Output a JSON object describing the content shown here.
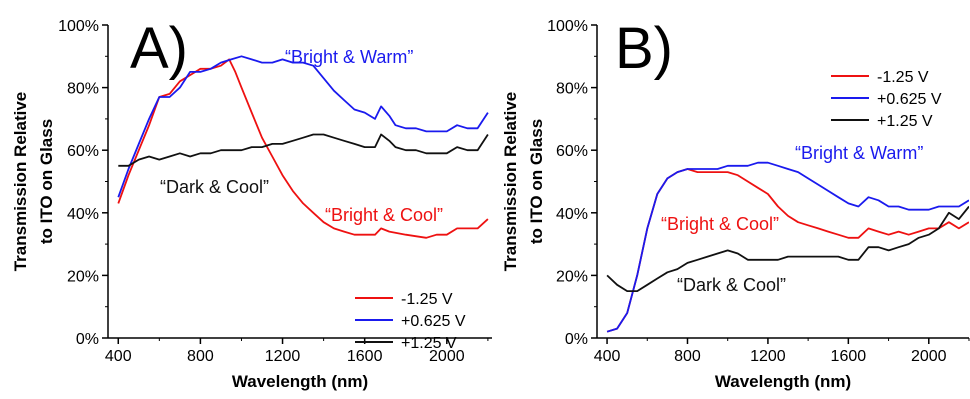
{
  "chart_data": [
    {
      "type": "line",
      "panel_label": "A)",
      "xlabel": "Wavelength (nm)",
      "ylabel": [
        "Transmission Relative",
        "to ITO on Glass"
      ],
      "xlim": [
        350,
        2220
      ],
      "ylim": [
        0,
        100
      ],
      "xticks": [
        400,
        800,
        1200,
        1600,
        2000
      ],
      "yticks": [
        0,
        20,
        40,
        60,
        80,
        100
      ],
      "ytick_labels": [
        "0%",
        "20%",
        "40%",
        "60%",
        "80%",
        "100%"
      ],
      "grid": false,
      "legend": "bottom-right",
      "series": [
        {
          "name": "-1.25 V",
          "color": "#ee1111",
          "points": [
            [
              400,
              43
            ],
            [
              450,
              52
            ],
            [
              500,
              60
            ],
            [
              550,
              68
            ],
            [
              600,
              77
            ],
            [
              650,
              78
            ],
            [
              700,
              82
            ],
            [
              750,
              84
            ],
            [
              800,
              86
            ],
            [
              850,
              86
            ],
            [
              900,
              87
            ],
            [
              940,
              89
            ],
            [
              970,
              85
            ],
            [
              1000,
              80
            ],
            [
              1050,
              72
            ],
            [
              1100,
              64
            ],
            [
              1150,
              58
            ],
            [
              1200,
              52
            ],
            [
              1250,
              47
            ],
            [
              1300,
              43
            ],
            [
              1350,
              40
            ],
            [
              1400,
              37
            ],
            [
              1450,
              35
            ],
            [
              1500,
              34
            ],
            [
              1550,
              33
            ],
            [
              1600,
              33
            ],
            [
              1650,
              33
            ],
            [
              1680,
              35
            ],
            [
              1720,
              34
            ],
            [
              1800,
              33
            ],
            [
              1900,
              32
            ],
            [
              1950,
              33
            ],
            [
              2000,
              33
            ],
            [
              2050,
              35
            ],
            [
              2100,
              35
            ],
            [
              2150,
              35
            ],
            [
              2200,
              38
            ]
          ]
        },
        {
          "name": "+0.625 V",
          "color": "#1a1aee",
          "points": [
            [
              400,
              45
            ],
            [
              450,
              54
            ],
            [
              500,
              62
            ],
            [
              550,
              70
            ],
            [
              600,
              77
            ],
            [
              650,
              77
            ],
            [
              700,
              80
            ],
            [
              750,
              85
            ],
            [
              800,
              85
            ],
            [
              850,
              86
            ],
            [
              900,
              88
            ],
            [
              950,
              89
            ],
            [
              1000,
              90
            ],
            [
              1050,
              89
            ],
            [
              1100,
              88
            ],
            [
              1150,
              88
            ],
            [
              1200,
              89
            ],
            [
              1250,
              88
            ],
            [
              1300,
              88
            ],
            [
              1350,
              87
            ],
            [
              1400,
              83
            ],
            [
              1450,
              79
            ],
            [
              1500,
              76
            ],
            [
              1550,
              73
            ],
            [
              1600,
              72
            ],
            [
              1650,
              70
            ],
            [
              1680,
              74
            ],
            [
              1720,
              71
            ],
            [
              1750,
              68
            ],
            [
              1800,
              67
            ],
            [
              1850,
              67
            ],
            [
              1900,
              66
            ],
            [
              1950,
              66
            ],
            [
              2000,
              66
            ],
            [
              2050,
              68
            ],
            [
              2100,
              67
            ],
            [
              2150,
              67
            ],
            [
              2200,
              72
            ]
          ]
        },
        {
          "name": "+1.25 V",
          "color": "#111111",
          "points": [
            [
              400,
              55
            ],
            [
              450,
              55
            ],
            [
              500,
              57
            ],
            [
              550,
              58
            ],
            [
              600,
              57
            ],
            [
              650,
              58
            ],
            [
              700,
              59
            ],
            [
              750,
              58
            ],
            [
              800,
              59
            ],
            [
              850,
              59
            ],
            [
              900,
              60
            ],
            [
              950,
              60
            ],
            [
              1000,
              60
            ],
            [
              1050,
              61
            ],
            [
              1100,
              61
            ],
            [
              1150,
              62
            ],
            [
              1200,
              62
            ],
            [
              1250,
              63
            ],
            [
              1300,
              64
            ],
            [
              1350,
              65
            ],
            [
              1400,
              65
            ],
            [
              1450,
              64
            ],
            [
              1500,
              63
            ],
            [
              1550,
              62
            ],
            [
              1600,
              61
            ],
            [
              1650,
              61
            ],
            [
              1680,
              65
            ],
            [
              1720,
              63
            ],
            [
              1750,
              61
            ],
            [
              1800,
              60
            ],
            [
              1850,
              60
            ],
            [
              1900,
              59
            ],
            [
              1950,
              59
            ],
            [
              2000,
              59
            ],
            [
              2050,
              61
            ],
            [
              2100,
              60
            ],
            [
              2150,
              60
            ],
            [
              2200,
              65
            ]
          ]
        }
      ],
      "annotations": [
        {
          "text": "“Bright & Warm”",
          "color": "#1a1aee",
          "x": 1650,
          "y": 90
        },
        {
          "text": "“Bright & Cool”",
          "color": "#ee1111",
          "x": 1800,
          "y": 39
        },
        {
          "text": "“Dark & Cool”",
          "color": "#111111",
          "x": 770,
          "y": 47
        }
      ]
    },
    {
      "type": "line",
      "panel_label": "B)",
      "xlabel": "Wavelength (nm)",
      "ylabel": [
        "Transmission Relative",
        "to ITO on Glass"
      ],
      "xlim": [
        350,
        2200
      ],
      "ylim": [
        0,
        100
      ],
      "xticks": [
        400,
        800,
        1200,
        1600,
        2000
      ],
      "yticks": [
        0,
        20,
        40,
        60,
        80,
        100
      ],
      "ytick_labels": [
        "0%",
        "20%",
        "40%",
        "60%",
        "80%",
        "100%"
      ],
      "grid": false,
      "legend": "top-right",
      "series": [
        {
          "name": "-1.25 V",
          "color": "#ee1111",
          "points": [
            [
              400,
              2
            ],
            [
              450,
              3
            ],
            [
              500,
              8
            ],
            [
              550,
              20
            ],
            [
              600,
              35
            ],
            [
              650,
              46
            ],
            [
              700,
              51
            ],
            [
              750,
              53
            ],
            [
              800,
              54
            ],
            [
              850,
              53
            ],
            [
              900,
              53
            ],
            [
              950,
              53
            ],
            [
              1000,
              53
            ],
            [
              1050,
              52
            ],
            [
              1100,
              50
            ],
            [
              1150,
              48
            ],
            [
              1200,
              46
            ],
            [
              1250,
              42
            ],
            [
              1300,
              39
            ],
            [
              1350,
              37
            ],
            [
              1400,
              36
            ],
            [
              1450,
              35
            ],
            [
              1500,
              34
            ],
            [
              1550,
              33
            ],
            [
              1600,
              32
            ],
            [
              1650,
              32
            ],
            [
              1700,
              35
            ],
            [
              1750,
              34
            ],
            [
              1800,
              33
            ],
            [
              1850,
              34
            ],
            [
              1900,
              33
            ],
            [
              1950,
              34
            ],
            [
              2000,
              35
            ],
            [
              2050,
              35
            ],
            [
              2100,
              37
            ],
            [
              2150,
              35
            ],
            [
              2200,
              37
            ]
          ]
        },
        {
          "name": "+0.625 V",
          "color": "#1a1aee",
          "points": [
            [
              400,
              2
            ],
            [
              450,
              3
            ],
            [
              500,
              8
            ],
            [
              550,
              20
            ],
            [
              600,
              35
            ],
            [
              650,
              46
            ],
            [
              700,
              51
            ],
            [
              750,
              53
            ],
            [
              800,
              54
            ],
            [
              850,
              54
            ],
            [
              900,
              54
            ],
            [
              950,
              54
            ],
            [
              1000,
              55
            ],
            [
              1050,
              55
            ],
            [
              1100,
              55
            ],
            [
              1150,
              56
            ],
            [
              1200,
              56
            ],
            [
              1250,
              55
            ],
            [
              1300,
              54
            ],
            [
              1350,
              53
            ],
            [
              1400,
              51
            ],
            [
              1450,
              49
            ],
            [
              1500,
              47
            ],
            [
              1550,
              45
            ],
            [
              1600,
              43
            ],
            [
              1650,
              42
            ],
            [
              1700,
              45
            ],
            [
              1750,
              44
            ],
            [
              1800,
              42
            ],
            [
              1850,
              42
            ],
            [
              1900,
              41
            ],
            [
              1950,
              41
            ],
            [
              2000,
              41
            ],
            [
              2050,
              42
            ],
            [
              2100,
              42
            ],
            [
              2150,
              42
            ],
            [
              2200,
              44
            ]
          ]
        },
        {
          "name": "+1.25 V",
          "color": "#111111",
          "points": [
            [
              400,
              20
            ],
            [
              450,
              17
            ],
            [
              500,
              15
            ],
            [
              550,
              15
            ],
            [
              600,
              17
            ],
            [
              650,
              19
            ],
            [
              700,
              21
            ],
            [
              750,
              22
            ],
            [
              800,
              24
            ],
            [
              850,
              25
            ],
            [
              900,
              26
            ],
            [
              950,
              27
            ],
            [
              1000,
              28
            ],
            [
              1050,
              27
            ],
            [
              1100,
              25
            ],
            [
              1150,
              25
            ],
            [
              1200,
              25
            ],
            [
              1250,
              25
            ],
            [
              1300,
              26
            ],
            [
              1350,
              26
            ],
            [
              1400,
              26
            ],
            [
              1450,
              26
            ],
            [
              1500,
              26
            ],
            [
              1550,
              26
            ],
            [
              1600,
              25
            ],
            [
              1650,
              25
            ],
            [
              1700,
              29
            ],
            [
              1750,
              29
            ],
            [
              1800,
              28
            ],
            [
              1850,
              29
            ],
            [
              1900,
              30
            ],
            [
              1950,
              32
            ],
            [
              2000,
              33
            ],
            [
              2050,
              35
            ],
            [
              2100,
              40
            ],
            [
              2150,
              38
            ],
            [
              2200,
              42
            ]
          ]
        }
      ],
      "annotations": [
        {
          "text": "“Bright & Warm”",
          "color": "#1a1aee",
          "x": 1590,
          "y": 58
        },
        {
          "text": "“Bright & Cool”",
          "color": "#ee1111",
          "x": 1070,
          "y": 34
        },
        {
          "text": "“Dark & Cool”",
          "color": "#111111",
          "x": 1180,
          "y": 15
        }
      ]
    }
  ]
}
